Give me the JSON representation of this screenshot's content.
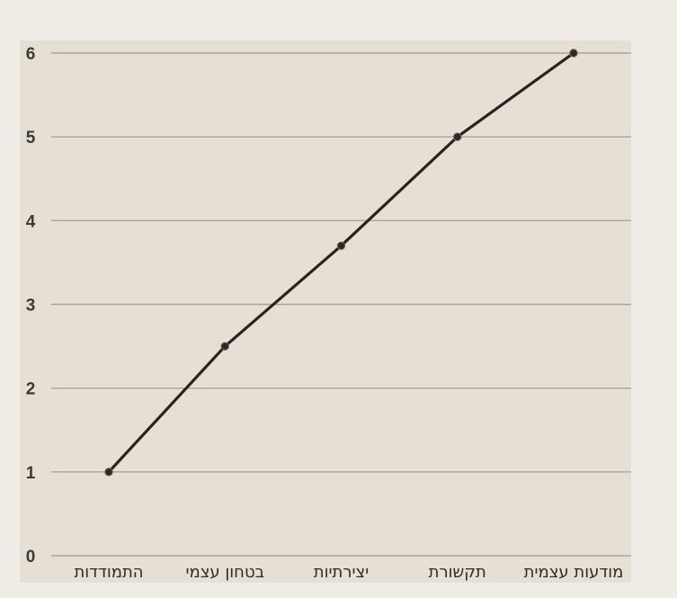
{
  "chart_data": {
    "type": "line",
    "title": "",
    "xlabel": "",
    "ylabel": "",
    "categories": [
      "התמודדות",
      "בטחון עצמי",
      "יצירתיות",
      "תקשורת",
      "מודעות עצמית"
    ],
    "series": [
      {
        "values": [
          1,
          2.5,
          3.7,
          5,
          6
        ]
      }
    ],
    "ylim": [
      0,
      6
    ],
    "yticks": [
      0,
      1,
      2,
      3,
      4,
      5,
      6
    ],
    "grid": true,
    "legend": "none",
    "colors": {
      "line": "#252422",
      "grid": "#a9a49b",
      "background": "#efede6",
      "panel": "#e6dfd3"
    }
  }
}
